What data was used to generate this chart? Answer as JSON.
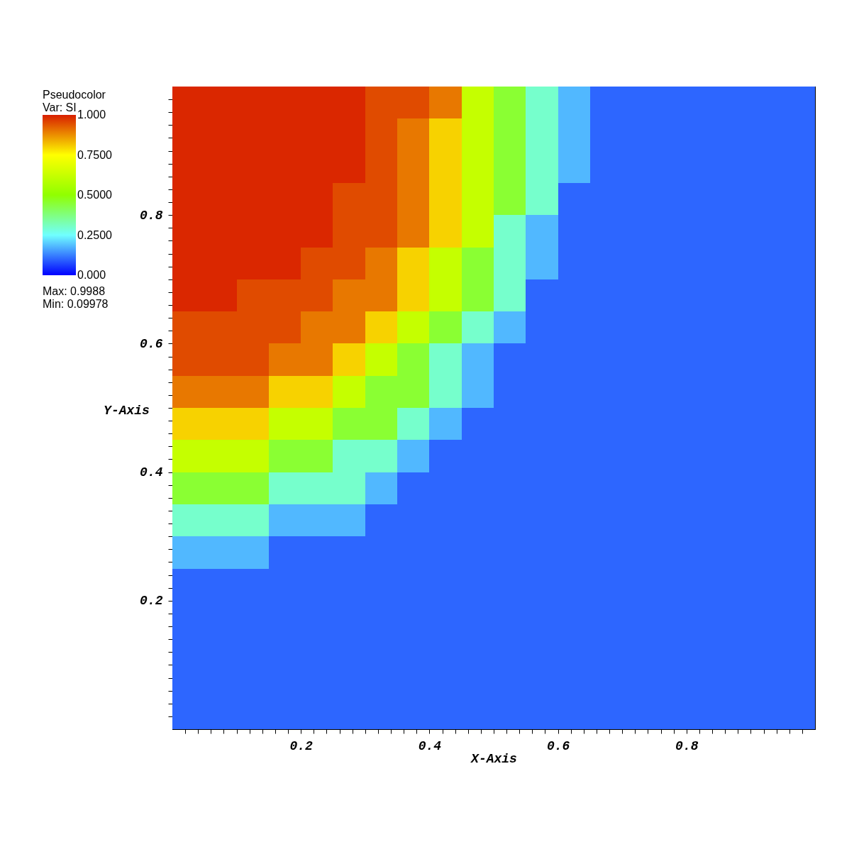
{
  "chart_data": {
    "type": "heatmap",
    "title": "Pseudocolor",
    "clabel": "Var: SI",
    "xlabel": "X-Axis",
    "ylabel": "Y-Axis",
    "annotations": [
      "Max: 0.9988",
      "Min: 0.09978"
    ],
    "x": [
      0.025,
      0.075,
      0.125,
      0.175,
      0.225,
      0.275,
      0.325,
      0.375,
      0.425,
      0.475,
      0.525,
      0.575,
      0.625,
      0.675,
      0.725,
      0.775,
      0.825,
      0.875,
      0.925,
      0.975
    ],
    "y": [
      0.975,
      0.925,
      0.875,
      0.825,
      0.775,
      0.725,
      0.675,
      0.625,
      0.575,
      0.525,
      0.475,
      0.425,
      0.375,
      0.325,
      0.275,
      0.225,
      0.175,
      0.125,
      0.075,
      0.025
    ],
    "cells": [
      [
        0.99,
        0.99,
        0.99,
        0.99,
        0.99,
        0.99,
        0.95,
        0.95,
        0.9,
        0.62,
        0.45,
        0.3,
        0.18,
        0.1,
        0.1,
        0.1,
        0.1,
        0.1,
        0.1,
        0.1
      ],
      [
        0.99,
        0.99,
        0.99,
        0.99,
        0.99,
        0.99,
        0.95,
        0.9,
        0.8,
        0.62,
        0.45,
        0.3,
        0.18,
        0.1,
        0.1,
        0.1,
        0.1,
        0.1,
        0.1,
        0.1
      ],
      [
        0.99,
        0.99,
        0.99,
        0.99,
        0.99,
        0.99,
        0.95,
        0.9,
        0.8,
        0.62,
        0.45,
        0.3,
        0.18,
        0.1,
        0.1,
        0.1,
        0.1,
        0.1,
        0.1,
        0.1
      ],
      [
        0.99,
        0.99,
        0.99,
        0.99,
        0.99,
        0.95,
        0.95,
        0.9,
        0.8,
        0.62,
        0.45,
        0.3,
        0.1,
        0.1,
        0.1,
        0.1,
        0.1,
        0.1,
        0.1,
        0.1
      ],
      [
        0.99,
        0.99,
        0.99,
        0.99,
        0.99,
        0.95,
        0.95,
        0.9,
        0.8,
        0.62,
        0.3,
        0.18,
        0.1,
        0.1,
        0.1,
        0.1,
        0.1,
        0.1,
        0.1,
        0.1
      ],
      [
        0.99,
        0.99,
        0.99,
        0.99,
        0.95,
        0.95,
        0.9,
        0.8,
        0.62,
        0.45,
        0.3,
        0.18,
        0.1,
        0.1,
        0.1,
        0.1,
        0.1,
        0.1,
        0.1,
        0.1
      ],
      [
        0.99,
        0.99,
        0.95,
        0.95,
        0.95,
        0.9,
        0.9,
        0.8,
        0.62,
        0.45,
        0.3,
        0.1,
        0.1,
        0.1,
        0.1,
        0.1,
        0.1,
        0.1,
        0.1,
        0.1
      ],
      [
        0.95,
        0.95,
        0.95,
        0.95,
        0.9,
        0.9,
        0.8,
        0.62,
        0.45,
        0.3,
        0.18,
        0.1,
        0.1,
        0.1,
        0.1,
        0.1,
        0.1,
        0.1,
        0.1,
        0.1
      ],
      [
        0.95,
        0.95,
        0.95,
        0.9,
        0.9,
        0.8,
        0.62,
        0.45,
        0.3,
        0.18,
        0.1,
        0.1,
        0.1,
        0.1,
        0.1,
        0.1,
        0.1,
        0.1,
        0.1,
        0.1
      ],
      [
        0.9,
        0.9,
        0.9,
        0.8,
        0.8,
        0.62,
        0.45,
        0.45,
        0.3,
        0.18,
        0.1,
        0.1,
        0.1,
        0.1,
        0.1,
        0.1,
        0.1,
        0.1,
        0.1,
        0.1
      ],
      [
        0.8,
        0.8,
        0.8,
        0.62,
        0.62,
        0.45,
        0.45,
        0.3,
        0.18,
        0.1,
        0.1,
        0.1,
        0.1,
        0.1,
        0.1,
        0.1,
        0.1,
        0.1,
        0.1,
        0.1
      ],
      [
        0.62,
        0.62,
        0.62,
        0.45,
        0.45,
        0.3,
        0.3,
        0.18,
        0.1,
        0.1,
        0.1,
        0.1,
        0.1,
        0.1,
        0.1,
        0.1,
        0.1,
        0.1,
        0.1,
        0.1
      ],
      [
        0.45,
        0.45,
        0.45,
        0.3,
        0.3,
        0.3,
        0.18,
        0.1,
        0.1,
        0.1,
        0.1,
        0.1,
        0.1,
        0.1,
        0.1,
        0.1,
        0.1,
        0.1,
        0.1,
        0.1
      ],
      [
        0.3,
        0.3,
        0.3,
        0.18,
        0.18,
        0.18,
        0.1,
        0.1,
        0.1,
        0.1,
        0.1,
        0.1,
        0.1,
        0.1,
        0.1,
        0.1,
        0.1,
        0.1,
        0.1,
        0.1
      ],
      [
        0.18,
        0.18,
        0.18,
        0.1,
        0.1,
        0.1,
        0.1,
        0.1,
        0.1,
        0.1,
        0.1,
        0.1,
        0.1,
        0.1,
        0.1,
        0.1,
        0.1,
        0.1,
        0.1,
        0.1
      ],
      [
        0.1,
        0.1,
        0.1,
        0.1,
        0.1,
        0.1,
        0.1,
        0.1,
        0.1,
        0.1,
        0.1,
        0.1,
        0.1,
        0.1,
        0.1,
        0.1,
        0.1,
        0.1,
        0.1,
        0.1
      ],
      [
        0.1,
        0.1,
        0.1,
        0.1,
        0.1,
        0.1,
        0.1,
        0.1,
        0.1,
        0.1,
        0.1,
        0.1,
        0.1,
        0.1,
        0.1,
        0.1,
        0.1,
        0.1,
        0.1,
        0.1
      ],
      [
        0.1,
        0.1,
        0.1,
        0.1,
        0.1,
        0.1,
        0.1,
        0.1,
        0.1,
        0.1,
        0.1,
        0.1,
        0.1,
        0.1,
        0.1,
        0.1,
        0.1,
        0.1,
        0.1,
        0.1
      ],
      [
        0.1,
        0.1,
        0.1,
        0.1,
        0.1,
        0.1,
        0.1,
        0.1,
        0.1,
        0.1,
        0.1,
        0.1,
        0.1,
        0.1,
        0.1,
        0.1,
        0.1,
        0.1,
        0.1,
        0.1
      ],
      [
        0.1,
        0.1,
        0.1,
        0.1,
        0.1,
        0.1,
        0.1,
        0.1,
        0.1,
        0.1,
        0.1,
        0.1,
        0.1,
        0.1,
        0.1,
        0.1,
        0.1,
        0.1,
        0.1,
        0.1
      ]
    ],
    "clim": [
      0,
      1
    ],
    "cticks": [
      {
        "value": 0,
        "label": "0.000"
      },
      {
        "value": 0.25,
        "label": "0.2500"
      },
      {
        "value": 0.5,
        "label": "0.5000"
      },
      {
        "value": 0.75,
        "label": "0.7500"
      },
      {
        "value": 1,
        "label": "1.000"
      }
    ],
    "xlim": [
      0,
      1
    ],
    "ylim": [
      0,
      1
    ],
    "xticks": [
      {
        "value": 0.02,
        "label": null
      },
      {
        "value": 0.04,
        "label": null
      },
      {
        "value": 0.06,
        "label": null
      },
      {
        "value": 0.08,
        "label": null
      },
      {
        "value": 0.1,
        "label": null
      },
      {
        "value": 0.12,
        "label": null
      },
      {
        "value": 0.14,
        "label": null
      },
      {
        "value": 0.16,
        "label": null
      },
      {
        "value": 0.18,
        "label": null
      },
      0.2,
      {
        "value": 0.22,
        "label": null
      },
      {
        "value": 0.24,
        "label": null
      },
      {
        "value": 0.26,
        "label": null
      },
      {
        "value": 0.28,
        "label": null
      },
      {
        "value": 0.3,
        "label": null
      },
      {
        "value": 0.32,
        "label": null
      },
      {
        "value": 0.34,
        "label": null
      },
      {
        "value": 0.36,
        "label": null
      },
      {
        "value": 0.38,
        "label": null
      },
      0.4,
      {
        "value": 0.42,
        "label": null
      },
      {
        "value": 0.44,
        "label": null
      },
      {
        "value": 0.46,
        "label": null
      },
      {
        "value": 0.48,
        "label": null
      },
      {
        "value": 0.5,
        "label": null
      },
      {
        "value": 0.52,
        "label": null
      },
      {
        "value": 0.54,
        "label": null
      },
      {
        "value": 0.56,
        "label": null
      },
      {
        "value": 0.58,
        "label": null
      },
      0.6,
      {
        "value": 0.62,
        "label": null
      },
      {
        "value": 0.64,
        "label": null
      },
      {
        "value": 0.66,
        "label": null
      },
      {
        "value": 0.68,
        "label": null
      },
      {
        "value": 0.7,
        "label": null
      },
      {
        "value": 0.72,
        "label": null
      },
      {
        "value": 0.74,
        "label": null
      },
      {
        "value": 0.76,
        "label": null
      },
      {
        "value": 0.78,
        "label": null
      },
      0.8,
      {
        "value": 0.82,
        "label": null
      },
      {
        "value": 0.84,
        "label": null
      },
      {
        "value": 0.86,
        "label": null
      },
      {
        "value": 0.88,
        "label": null
      },
      {
        "value": 0.9,
        "label": null
      },
      {
        "value": 0.92,
        "label": null
      },
      {
        "value": 0.94,
        "label": null
      },
      {
        "value": 0.96,
        "label": null
      },
      {
        "value": 0.98,
        "label": null
      }
    ],
    "yticks": [
      {
        "value": 0.02,
        "label": null
      },
      {
        "value": 0.04,
        "label": null
      },
      {
        "value": 0.06,
        "label": null
      },
      {
        "value": 0.08,
        "label": null
      },
      {
        "value": 0.1,
        "label": null
      },
      {
        "value": 0.12,
        "label": null
      },
      {
        "value": 0.14,
        "label": null
      },
      {
        "value": 0.16,
        "label": null
      },
      {
        "value": 0.18,
        "label": null
      },
      0.2,
      {
        "value": 0.22,
        "label": null
      },
      {
        "value": 0.24,
        "label": null
      },
      {
        "value": 0.26,
        "label": null
      },
      {
        "value": 0.28,
        "label": null
      },
      {
        "value": 0.3,
        "label": null
      },
      {
        "value": 0.32,
        "label": null
      },
      {
        "value": 0.34,
        "label": null
      },
      {
        "value": 0.36,
        "label": null
      },
      {
        "value": 0.38,
        "label": null
      },
      0.4,
      {
        "value": 0.42,
        "label": null
      },
      {
        "value": 0.44,
        "label": null
      },
      {
        "value": 0.46,
        "label": null
      },
      {
        "value": 0.48,
        "label": null
      },
      {
        "value": 0.5,
        "label": null
      },
      {
        "value": 0.52,
        "label": null
      },
      {
        "value": 0.54,
        "label": null
      },
      {
        "value": 0.56,
        "label": null
      },
      {
        "value": 0.58,
        "label": null
      },
      0.6,
      {
        "value": 0.62,
        "label": null
      },
      {
        "value": 0.64,
        "label": null
      },
      {
        "value": 0.66,
        "label": null
      },
      {
        "value": 0.68,
        "label": null
      },
      {
        "value": 0.7,
        "label": null
      },
      {
        "value": 0.72,
        "label": null
      },
      {
        "value": 0.74,
        "label": null
      },
      {
        "value": 0.76,
        "label": null
      },
      {
        "value": 0.78,
        "label": null
      },
      0.8,
      {
        "value": 0.82,
        "label": null
      },
      {
        "value": 0.84,
        "label": null
      },
      {
        "value": 0.86,
        "label": null
      },
      {
        "value": 0.88,
        "label": null
      },
      {
        "value": 0.9,
        "label": null
      },
      {
        "value": 0.92,
        "label": null
      },
      {
        "value": 0.94,
        "label": null
      },
      {
        "value": 0.96,
        "label": null
      },
      {
        "value": 0.98,
        "label": null
      }
    ]
  }
}
